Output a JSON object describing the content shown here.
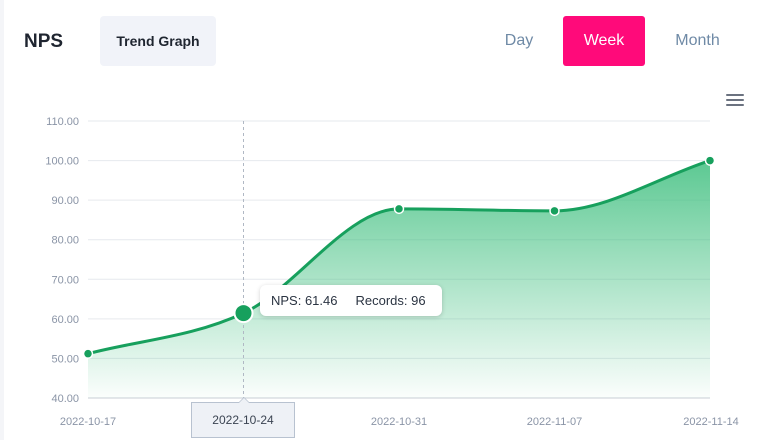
{
  "header": {
    "title": "NPS",
    "trend_button": "Trend Graph",
    "ranges": [
      {
        "label": "Day",
        "active": false
      },
      {
        "label": "Week",
        "active": true
      },
      {
        "label": "Month",
        "active": false
      }
    ],
    "menu_icon": "hamburger-icon"
  },
  "colors": {
    "accent": "#ff0a7a",
    "line": "#17a05d",
    "area_top": "#3fbf7f"
  },
  "tooltip": {
    "nps_text": "NPS: 61.46",
    "records_text": "Records: 96"
  },
  "x_highlight_label": "2022-10-24",
  "chart_data": {
    "type": "area",
    "x": [
      "2022-10-17",
      "2022-10-24",
      "2022-10-31",
      "2022-11-07",
      "2022-11-14"
    ],
    "values": [
      51.2,
      61.46,
      87.8,
      87.3,
      100.0
    ],
    "y_ticks": [
      "40.00",
      "50.00",
      "60.00",
      "70.00",
      "80.00",
      "90.00",
      "100.00",
      "110.00"
    ],
    "ylim": [
      40,
      110
    ],
    "highlighted_index": 1,
    "grid": true
  }
}
